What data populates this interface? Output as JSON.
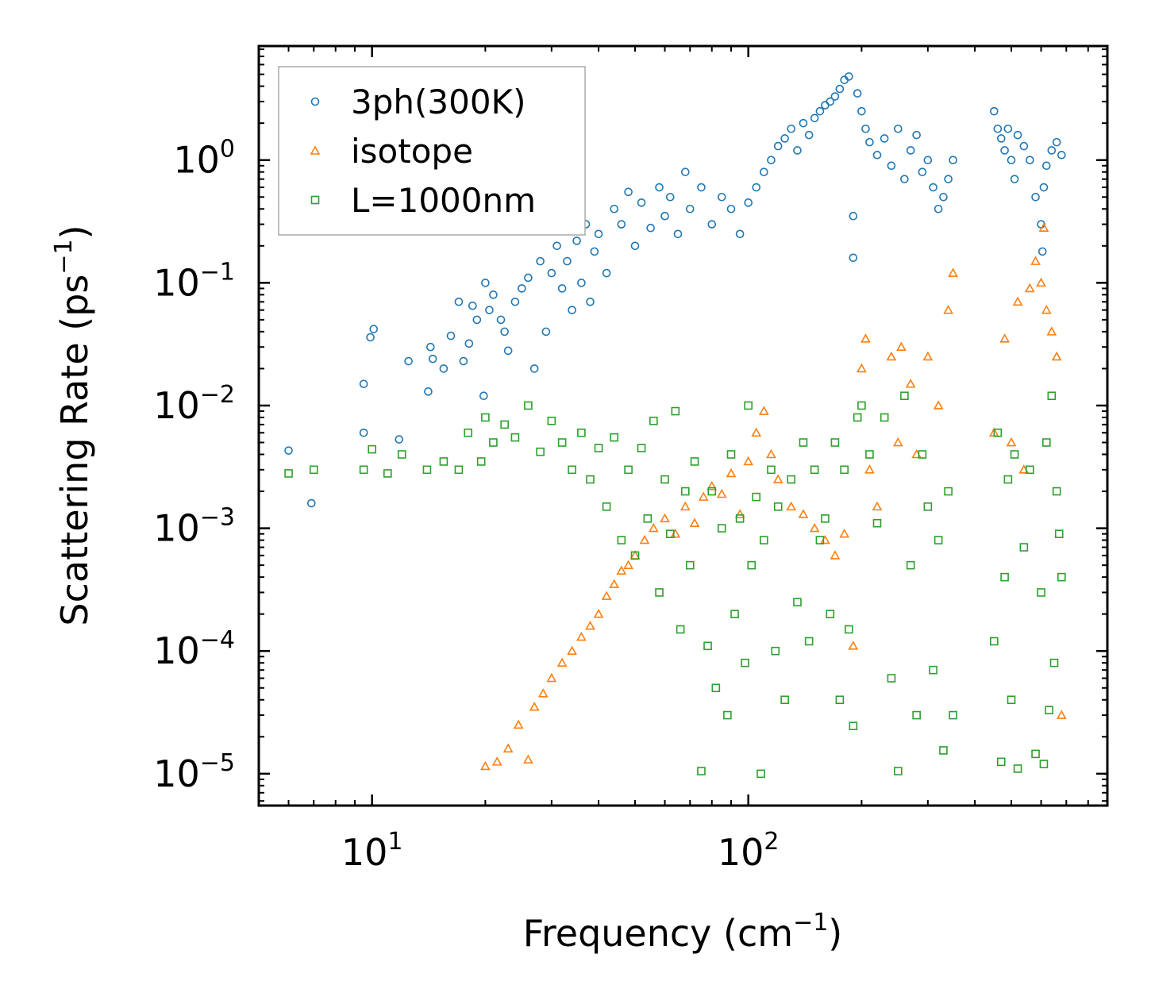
{
  "chart_data": {
    "type": "scatter",
    "title": "",
    "xlabel": "Frequency (cm",
    "xlabel_sup": "−1",
    "xlabel_end": ")",
    "ylabel": "Scattering Rate (ps",
    "ylabel_sup": "−1",
    "ylabel_end": ")",
    "x_scale": "log",
    "y_scale": "log",
    "xlim": [
      5,
      900
    ],
    "ylim": [
      5.5e-06,
      8.5
    ],
    "grid": false,
    "legend_position": "top-left",
    "x_ticks": [
      {
        "value": 10,
        "base": "10",
        "exp": "1"
      },
      {
        "value": 100,
        "base": "10",
        "exp": "2"
      }
    ],
    "y_ticks": [
      {
        "value": 1,
        "base": "10",
        "exp": "0"
      },
      {
        "value": 0.1,
        "base": "10",
        "exp": "−1"
      },
      {
        "value": 0.01,
        "base": "10",
        "exp": "−2"
      },
      {
        "value": 0.001,
        "base": "10",
        "exp": "−3"
      },
      {
        "value": 0.0001,
        "base": "10",
        "exp": "−4"
      },
      {
        "value": 1e-05,
        "base": "10",
        "exp": "−5"
      }
    ],
    "series": [
      {
        "name": "3ph(300K)",
        "marker": "circle",
        "color": "#1f77b4",
        "points": [
          [
            6.0,
            0.0043
          ],
          [
            6.9,
            0.0016
          ],
          [
            9.5,
            0.006
          ],
          [
            9.5,
            0.015
          ],
          [
            9.9,
            0.036
          ],
          [
            10.1,
            0.042
          ],
          [
            11.8,
            0.0053
          ],
          [
            12.5,
            0.023
          ],
          [
            14.1,
            0.013
          ],
          [
            14.3,
            0.03
          ],
          [
            14.5,
            0.024
          ],
          [
            15.5,
            0.02
          ],
          [
            16.2,
            0.037
          ],
          [
            17.0,
            0.07
          ],
          [
            17.5,
            0.023
          ],
          [
            18.1,
            0.032
          ],
          [
            18.5,
            0.065
          ],
          [
            19.0,
            0.05
          ],
          [
            19.8,
            0.012
          ],
          [
            20.0,
            0.1
          ],
          [
            20.5,
            0.06
          ],
          [
            21.0,
            0.08
          ],
          [
            22.0,
            0.05
          ],
          [
            22.5,
            0.04
          ],
          [
            23.0,
            0.028
          ],
          [
            24.0,
            0.07
          ],
          [
            25.0,
            0.09
          ],
          [
            26.0,
            0.11
          ],
          [
            27.0,
            0.02
          ],
          [
            28.0,
            0.15
          ],
          [
            29.0,
            0.04
          ],
          [
            30.0,
            0.12
          ],
          [
            31.0,
            0.2
          ],
          [
            32.0,
            0.09
          ],
          [
            33.0,
            0.15
          ],
          [
            34.0,
            0.06
          ],
          [
            35.0,
            0.22
          ],
          [
            36.0,
            0.1
          ],
          [
            37.0,
            0.3
          ],
          [
            38.0,
            0.07
          ],
          [
            39.0,
            0.18
          ],
          [
            40.0,
            0.25
          ],
          [
            42.0,
            0.12
          ],
          [
            44.0,
            0.4
          ],
          [
            46.0,
            0.3
          ],
          [
            48.0,
            0.55
          ],
          [
            50.0,
            0.2
          ],
          [
            52.0,
            0.45
          ],
          [
            55.0,
            0.28
          ],
          [
            58.0,
            0.6
          ],
          [
            60.0,
            0.35
          ],
          [
            62.0,
            0.5
          ],
          [
            65.0,
            0.25
          ],
          [
            68.0,
            0.8
          ],
          [
            70.0,
            0.4
          ],
          [
            75.0,
            0.6
          ],
          [
            80.0,
            0.3
          ],
          [
            85.0,
            0.5
          ],
          [
            90.0,
            0.4
          ],
          [
            95.0,
            0.25
          ],
          [
            100.0,
            0.45
          ],
          [
            105.0,
            0.6
          ],
          [
            110.0,
            0.8
          ],
          [
            115.0,
            1.0
          ],
          [
            120.0,
            1.3
          ],
          [
            125.0,
            1.5
          ],
          [
            130.0,
            1.8
          ],
          [
            135.0,
            1.2
          ],
          [
            140.0,
            2.0
          ],
          [
            145.0,
            1.6
          ],
          [
            150.0,
            2.2
          ],
          [
            155.0,
            2.5
          ],
          [
            160.0,
            2.8
          ],
          [
            165.0,
            3.0
          ],
          [
            170.0,
            3.3
          ],
          [
            175.0,
            3.8
          ],
          [
            180.0,
            4.5
          ],
          [
            185.0,
            4.8
          ],
          [
            190.0,
            0.35
          ],
          [
            190.0,
            0.16
          ],
          [
            195.0,
            3.5
          ],
          [
            200.0,
            2.5
          ],
          [
            205.0,
            1.8
          ],
          [
            210.0,
            1.4
          ],
          [
            220.0,
            1.1
          ],
          [
            230.0,
            1.5
          ],
          [
            240.0,
            0.9
          ],
          [
            250.0,
            1.8
          ],
          [
            260.0,
            0.7
          ],
          [
            270.0,
            1.2
          ],
          [
            280.0,
            1.6
          ],
          [
            290.0,
            0.8
          ],
          [
            300.0,
            1.0
          ],
          [
            310.0,
            0.6
          ],
          [
            320.0,
            0.4
          ],
          [
            330.0,
            0.5
          ],
          [
            340.0,
            0.7
          ],
          [
            350.0,
            1.0
          ],
          [
            450.0,
            2.5
          ],
          [
            460.0,
            1.8
          ],
          [
            470.0,
            1.5
          ],
          [
            480.0,
            1.2
          ],
          [
            490.0,
            1.8
          ],
          [
            500.0,
            1.0
          ],
          [
            510.0,
            0.7
          ],
          [
            520.0,
            1.6
          ],
          [
            540.0,
            1.3
          ],
          [
            560.0,
            1.0
          ],
          [
            580.0,
            0.5
          ],
          [
            600.0,
            0.3
          ],
          [
            605.0,
            0.18
          ],
          [
            610.0,
            0.6
          ],
          [
            620.0,
            0.9
          ],
          [
            640.0,
            1.2
          ],
          [
            660.0,
            1.4
          ],
          [
            680.0,
            1.1
          ]
        ]
      },
      {
        "name": "isotope",
        "marker": "triangle",
        "color": "#ff7f0e",
        "points": [
          [
            20.0,
            1.15e-05
          ],
          [
            21.5,
            1.25e-05
          ],
          [
            23.0,
            1.6e-05
          ],
          [
            24.5,
            2.5e-05
          ],
          [
            26.0,
            1.3e-05
          ],
          [
            27.0,
            3.5e-05
          ],
          [
            28.5,
            4.5e-05
          ],
          [
            30.0,
            6e-05
          ],
          [
            32.0,
            8e-05
          ],
          [
            34.0,
            0.0001
          ],
          [
            36.0,
            0.00013
          ],
          [
            38.0,
            0.00016
          ],
          [
            40.0,
            0.0002
          ],
          [
            42.0,
            0.00028
          ],
          [
            44.0,
            0.00035
          ],
          [
            46.0,
            0.00045
          ],
          [
            48.0,
            0.0005
          ],
          [
            50.0,
            0.0006
          ],
          [
            53.0,
            0.0008
          ],
          [
            56.0,
            0.001
          ],
          [
            60.0,
            0.0012
          ],
          [
            64.0,
            0.0009
          ],
          [
            68.0,
            0.0015
          ],
          [
            72.0,
            0.0011
          ],
          [
            76.0,
            0.0018
          ],
          [
            80.0,
            0.0022
          ],
          [
            85.0,
            0.0019
          ],
          [
            90.0,
            0.0028
          ],
          [
            95.0,
            0.0013
          ],
          [
            100.0,
            0.0035
          ],
          [
            105.0,
            0.006
          ],
          [
            110.0,
            0.009
          ],
          [
            115.0,
            0.004
          ],
          [
            120.0,
            0.0025
          ],
          [
            130.0,
            0.0015
          ],
          [
            140.0,
            0.0013
          ],
          [
            150.0,
            0.001
          ],
          [
            160.0,
            0.0008
          ],
          [
            170.0,
            0.0006
          ],
          [
            180.0,
            0.0009
          ],
          [
            190.0,
            0.00011
          ],
          [
            200.0,
            0.02
          ],
          [
            205.0,
            0.035
          ],
          [
            210.0,
            0.003
          ],
          [
            220.0,
            0.0015
          ],
          [
            240.0,
            0.025
          ],
          [
            250.0,
            0.005
          ],
          [
            255.0,
            0.03
          ],
          [
            270.0,
            0.015
          ],
          [
            280.0,
            0.004
          ],
          [
            300.0,
            0.025
          ],
          [
            320.0,
            0.01
          ],
          [
            340.0,
            0.06
          ],
          [
            350.0,
            0.12
          ],
          [
            450.0,
            0.006
          ],
          [
            480.0,
            0.035
          ],
          [
            500.0,
            0.005
          ],
          [
            520.0,
            0.07
          ],
          [
            540.0,
            0.003
          ],
          [
            560.0,
            0.09
          ],
          [
            580.0,
            0.15
          ],
          [
            600.0,
            0.1
          ],
          [
            610.0,
            0.28
          ],
          [
            620.0,
            0.06
          ],
          [
            640.0,
            0.04
          ],
          [
            660.0,
            0.025
          ],
          [
            680.0,
            3e-05
          ]
        ]
      },
      {
        "name": "L=1000nm",
        "marker": "square",
        "color": "#2ca02c",
        "points": [
          [
            6.0,
            0.0028
          ],
          [
            7.0,
            0.003
          ],
          [
            9.5,
            0.003
          ],
          [
            10.0,
            0.0044
          ],
          [
            11.0,
            0.0028
          ],
          [
            12.0,
            0.004
          ],
          [
            14.0,
            0.003
          ],
          [
            15.5,
            0.0035
          ],
          [
            17.0,
            0.003
          ],
          [
            18.0,
            0.006
          ],
          [
            19.5,
            0.0035
          ],
          [
            20.0,
            0.008
          ],
          [
            21.0,
            0.005
          ],
          [
            22.5,
            0.007
          ],
          [
            24.0,
            0.0055
          ],
          [
            26.0,
            0.01
          ],
          [
            28.0,
            0.0042
          ],
          [
            30.0,
            0.0075
          ],
          [
            32.0,
            0.005
          ],
          [
            34.0,
            0.003
          ],
          [
            36.0,
            0.006
          ],
          [
            38.0,
            0.0025
          ],
          [
            40.0,
            0.0045
          ],
          [
            42.0,
            0.0015
          ],
          [
            44.0,
            0.0055
          ],
          [
            46.0,
            0.0008
          ],
          [
            48.0,
            0.003
          ],
          [
            50.0,
            0.0006
          ],
          [
            52.0,
            0.0045
          ],
          [
            54.0,
            0.0012
          ],
          [
            56.0,
            0.0075
          ],
          [
            58.0,
            0.0003
          ],
          [
            60.0,
            0.0025
          ],
          [
            62.0,
            0.0009
          ],
          [
            64.0,
            0.009
          ],
          [
            66.0,
            0.00015
          ],
          [
            68.0,
            0.002
          ],
          [
            70.0,
            0.0005
          ],
          [
            72.0,
            0.0035
          ],
          [
            75.0,
            1.05e-05
          ],
          [
            78.0,
            0.00011
          ],
          [
            80.0,
            0.002
          ],
          [
            82.0,
            5e-05
          ],
          [
            85.0,
            0.001
          ],
          [
            88.0,
            3e-05
          ],
          [
            90.0,
            0.004
          ],
          [
            92.0,
            0.0002
          ],
          [
            95.0,
            0.0012
          ],
          [
            98.0,
            8e-05
          ],
          [
            100.0,
            0.01
          ],
          [
            102.0,
            0.0005
          ],
          [
            105.0,
            0.0018
          ],
          [
            108.0,
            1e-05
          ],
          [
            110.0,
            0.0008
          ],
          [
            115.0,
            0.003
          ],
          [
            118.0,
            0.0001
          ],
          [
            120.0,
            0.0015
          ],
          [
            125.0,
            4e-05
          ],
          [
            130.0,
            0.0025
          ],
          [
            135.0,
            0.00025
          ],
          [
            140.0,
            0.005
          ],
          [
            145.0,
            0.00012
          ],
          [
            150.0,
            0.003
          ],
          [
            155.0,
            0.0008
          ],
          [
            160.0,
            0.0012
          ],
          [
            165.0,
            0.0002
          ],
          [
            170.0,
            0.005
          ],
          [
            175.0,
            4e-05
          ],
          [
            180.0,
            0.003
          ],
          [
            185.0,
            0.00015
          ],
          [
            190.0,
            2.45e-05
          ],
          [
            195.0,
            0.008
          ],
          [
            200.0,
            0.01
          ],
          [
            210.0,
            0.004
          ],
          [
            220.0,
            0.0011
          ],
          [
            230.0,
            0.008
          ],
          [
            240.0,
            6e-05
          ],
          [
            250.0,
            1.05e-05
          ],
          [
            260.0,
            0.012
          ],
          [
            270.0,
            0.0005
          ],
          [
            280.0,
            3e-05
          ],
          [
            290.0,
            0.004
          ],
          [
            300.0,
            0.0015
          ],
          [
            310.0,
            7e-05
          ],
          [
            320.0,
            0.0008
          ],
          [
            330.0,
            1.55e-05
          ],
          [
            340.0,
            0.002
          ],
          [
            350.0,
            3e-05
          ],
          [
            450.0,
            0.00012
          ],
          [
            460.0,
            0.006
          ],
          [
            470.0,
            1.25e-05
          ],
          [
            480.0,
            0.0004
          ],
          [
            490.0,
            0.0025
          ],
          [
            500.0,
            4e-05
          ],
          [
            510.0,
            0.004
          ],
          [
            520.0,
            1.1e-05
          ],
          [
            540.0,
            0.0007
          ],
          [
            560.0,
            0.003
          ],
          [
            580.0,
            1.45e-05
          ],
          [
            600.0,
            0.0003
          ],
          [
            610.0,
            1.2e-05
          ],
          [
            620.0,
            0.005
          ],
          [
            630.0,
            3.3e-05
          ],
          [
            640.0,
            0.012
          ],
          [
            650.0,
            8e-05
          ],
          [
            660.0,
            0.002
          ],
          [
            670.0,
            0.0009
          ],
          [
            680.0,
            0.0004
          ]
        ]
      }
    ]
  }
}
